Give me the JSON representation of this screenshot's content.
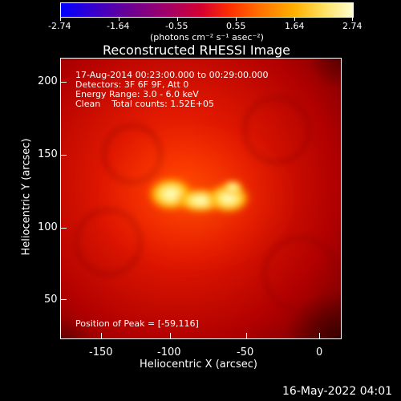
{
  "colorbar": {
    "ticks": [
      "-2.74",
      "-1.64",
      "-0.55",
      "0.55",
      "1.64",
      "2.74"
    ],
    "unit_label": "(photons cm⁻² s⁻¹ asec⁻²)"
  },
  "title": "Reconstructed RHESSI Image",
  "info": {
    "time_range": "17-Aug-2014 00:23:00.000 to 00:29:00.000",
    "detectors": "Detectors: 3F 6F 9F, Att 0",
    "energy": "Energy Range: 3.0 - 6.0 keV",
    "method_and_counts": "Clean    Total counts: 1.52E+05",
    "peak": "Position of Peak = [-59,116]"
  },
  "axes": {
    "xlabel": "Heliocentric X (arcsec)",
    "ylabel": "Heliocentric Y (arcsec)",
    "xticks": [
      "-150",
      "-100",
      "-50",
      "0"
    ],
    "yticks": [
      "200",
      "150",
      "100",
      "50"
    ]
  },
  "footer_timestamp": "16-May-2022 04:01",
  "colors": {
    "background": "#000000",
    "image_base": "#b80000",
    "peak": "#fff8a0"
  }
}
